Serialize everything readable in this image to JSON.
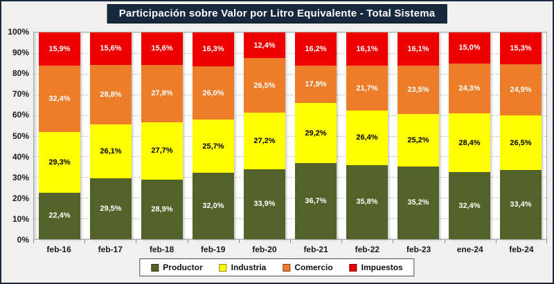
{
  "title": "Participación sobre Valor por Litro Equivalente - Total Sistema",
  "colors": {
    "title_bg": "#16293D",
    "frame_border": "#1B2A3D",
    "plot_bg": "#FFFFFF",
    "gridline": "#C4C4C4",
    "productor": "#536228",
    "industria": "#FFFF00",
    "comercio": "#ED7D29",
    "impuestos": "#EE0000"
  },
  "chart_data": {
    "type": "bar",
    "stacked": true,
    "title": "Participación sobre Valor por Litro Equivalente - Total Sistema",
    "categories": [
      "feb-16",
      "feb-17",
      "feb-18",
      "feb-19",
      "feb-20",
      "feb-21",
      "feb-22",
      "feb-23",
      "ene-24",
      "feb-24"
    ],
    "series": [
      {
        "name": "Productor",
        "color": "#536228",
        "label_color": "#FFFFFF",
        "values": [
          22.4,
          29.5,
          28.9,
          32.0,
          33.9,
          36.7,
          35.8,
          35.2,
          32.4,
          33.4
        ],
        "labels": [
          "22,4%",
          "29,5%",
          "28,9%",
          "32,0%",
          "33,9%",
          "36,7%",
          "35,8%",
          "35,2%",
          "32,4%",
          "33,4%"
        ]
      },
      {
        "name": "Industria",
        "color": "#FFFF00",
        "label_color": "#000000",
        "values": [
          29.3,
          26.1,
          27.7,
          25.7,
          27.2,
          29.2,
          26.4,
          25.2,
          28.4,
          26.5
        ],
        "labels": [
          "29,3%",
          "26,1%",
          "27,7%",
          "25,7%",
          "27,2%",
          "29,2%",
          "26,4%",
          "25,2%",
          "28,4%",
          "26,5%"
        ]
      },
      {
        "name": "Comercio",
        "color": "#ED7D29",
        "label_color": "#FFFFFF",
        "values": [
          32.4,
          28.8,
          27.8,
          26.0,
          26.5,
          17.9,
          21.7,
          23.5,
          24.3,
          24.9
        ],
        "labels": [
          "32,4%",
          "28,8%",
          "27,8%",
          "26,0%",
          "26,5%",
          "17,9%",
          "21,7%",
          "23,5%",
          "24,3%",
          "24,9%"
        ]
      },
      {
        "name": "Impuestos",
        "color": "#EE0000",
        "label_color": "#FFFFFF",
        "values": [
          15.9,
          15.6,
          15.6,
          16.3,
          12.4,
          16.2,
          16.1,
          16.1,
          15.0,
          15.3
        ],
        "labels": [
          "15,9%",
          "15,6%",
          "15,6%",
          "16,3%",
          "12,4%",
          "16,2%",
          "16,1%",
          "16,1%",
          "15,0%",
          "15,3%"
        ]
      }
    ],
    "y_ticks": [
      "100%",
      "90%",
      "80%",
      "70%",
      "60%",
      "50%",
      "40%",
      "30%",
      "20%",
      "10%",
      "0%"
    ],
    "ylim": [
      0,
      100
    ],
    "grid": "dashed-horizontal",
    "legend_position": "bottom"
  }
}
